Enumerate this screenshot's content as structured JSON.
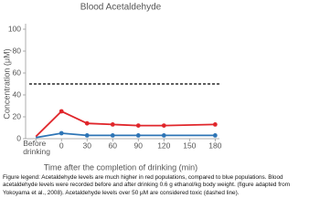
{
  "chart_data": {
    "type": "line",
    "title": "Blood Acetaldehyde",
    "y_label": "Concentration (μM)",
    "x_label": "Time after the completion of drinking (min)",
    "x": [
      -30,
      0,
      30,
      60,
      90,
      120,
      180
    ],
    "series": [
      {
        "color": "#e0262b",
        "values": [
          2,
          25,
          14,
          13,
          12,
          12,
          13
        ]
      },
      {
        "color": "#2e75b6",
        "values": [
          1,
          5,
          3,
          3,
          3,
          3,
          3
        ]
      }
    ],
    "reference_line": {
      "value": 50,
      "style": "dashed",
      "color": "#000000"
    },
    "xlim": [
      -42,
      185
    ],
    "xticks": [
      {
        "value": -30,
        "label": "Before drinking"
      },
      0,
      30,
      60,
      90,
      120,
      150,
      180
    ],
    "ylim": [
      0,
      100
    ],
    "yticks": [
      0,
      20,
      40,
      60,
      80,
      100
    ],
    "grid": false
  },
  "caption": "Figure legend: Acetaldehyde levels are much higher in red populations, compared to blue populations. Blood acetaldehyde levels were recorded before and after drinking 0.6 g ethanol/kg body weight. (figure adapted from Yokoyama et al., 2008). Acetaldehyde levels over 50 μM are considered toxic (dashed line)."
}
